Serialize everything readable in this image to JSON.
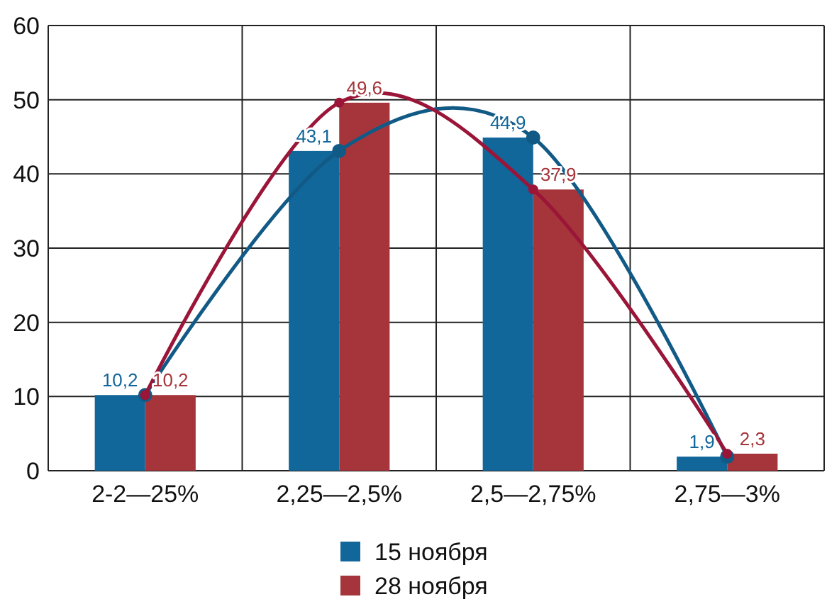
{
  "chart_data": {
    "type": "bar",
    "categories": [
      "2-2—25%",
      "2,25—2,5%",
      "2,5—2,75%",
      "2,75—3%"
    ],
    "series": [
      {
        "name": "15 ноября",
        "color": "#11669a",
        "values": [
          10.2,
          43.1,
          44.9,
          1.9
        ],
        "value_labels": [
          "10,2",
          "43,1",
          "44,9",
          "1,9"
        ]
      },
      {
        "name": "28 ноября",
        "color": "#a6353b",
        "values": [
          10.2,
          49.6,
          37.9,
          2.3
        ],
        "value_labels": [
          "10,2",
          "49,6",
          "37,9",
          "2,3"
        ]
      },
      {
        "type": "line",
        "color": "#125a86",
        "values": [
          10.2,
          43.1,
          44.9,
          1.9
        ]
      },
      {
        "type": "line",
        "color": "#9a1538",
        "values": [
          10.2,
          49.6,
          37.9,
          2.3
        ]
      }
    ],
    "ylim": [
      0,
      60
    ],
    "yticks": [
      0,
      10,
      20,
      30,
      40,
      50,
      60
    ],
    "grid": true,
    "legend": "bottom",
    "marker": "circle",
    "line_style": "solid"
  }
}
